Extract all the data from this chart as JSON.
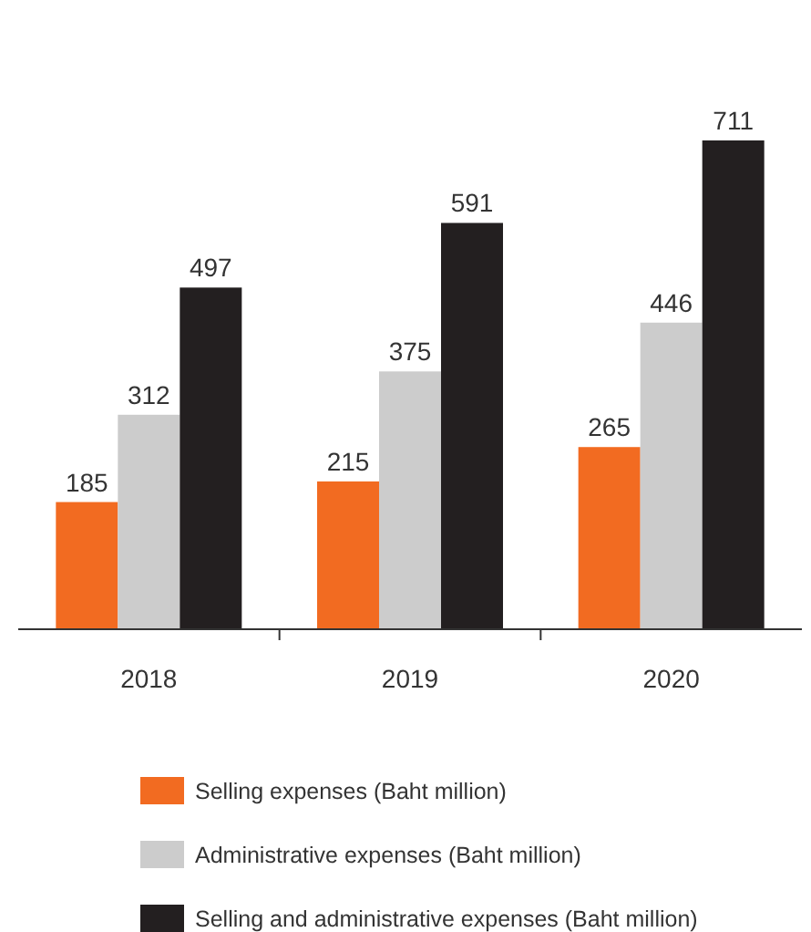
{
  "chart_data": {
    "type": "bar",
    "categories": [
      "2018",
      "2019",
      "2020"
    ],
    "series": [
      {
        "name": "Selling expenses (Baht million)",
        "color": "#f26b21",
        "values": [
          185,
          215,
          265
        ]
      },
      {
        "name": "Administrative expenses (Baht million)",
        "color": "#cccccc",
        "values": [
          312,
          375,
          446
        ]
      },
      {
        "name": "Selling and administrative expenses (Baht million)",
        "color": "#231f20",
        "values": [
          497,
          591,
          711
        ]
      }
    ],
    "data_labels": true,
    "legend": "bottom"
  }
}
